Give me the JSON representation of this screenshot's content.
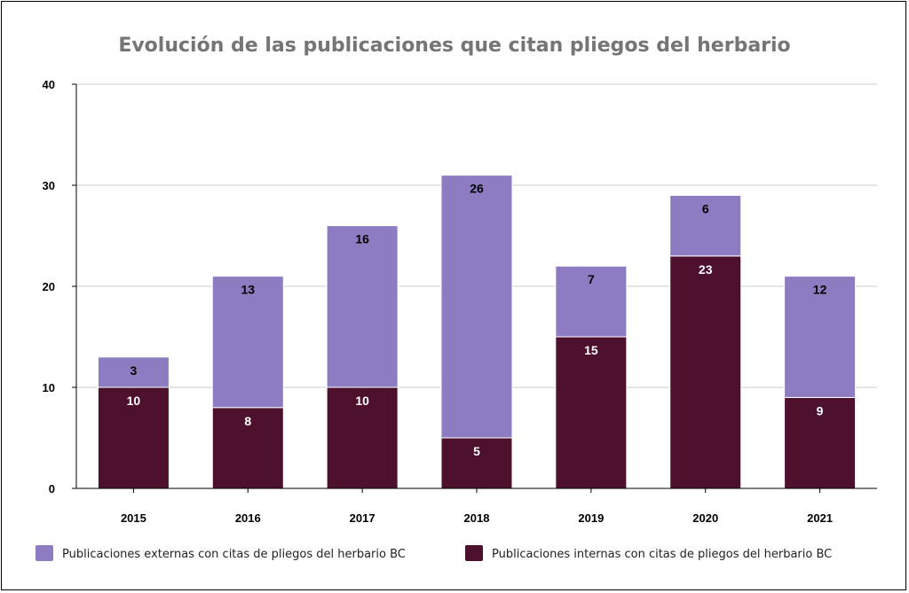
{
  "chart_data": {
    "type": "bar",
    "stacked": true,
    "title": "Evolución de las publicaciones que citan pliegos del herbario",
    "categories": [
      "2015",
      "2016",
      "2017",
      "2018",
      "2019",
      "2020",
      "2021"
    ],
    "series": [
      {
        "name": "Publicaciones internas con citas de pliegos del herbario BC",
        "color": "#4d112e",
        "values": [
          10,
          8,
          10,
          5,
          15,
          23,
          9
        ]
      },
      {
        "name": "Publicaciones externas con citas de pliegos del herbario BC",
        "color": "#8e7cc3",
        "values": [
          3,
          13,
          16,
          26,
          7,
          6,
          12
        ]
      }
    ],
    "ylim": [
      0,
      40
    ],
    "yticks": [
      0,
      10,
      20,
      30,
      40
    ],
    "grid": true,
    "legend_position": "bottom"
  }
}
